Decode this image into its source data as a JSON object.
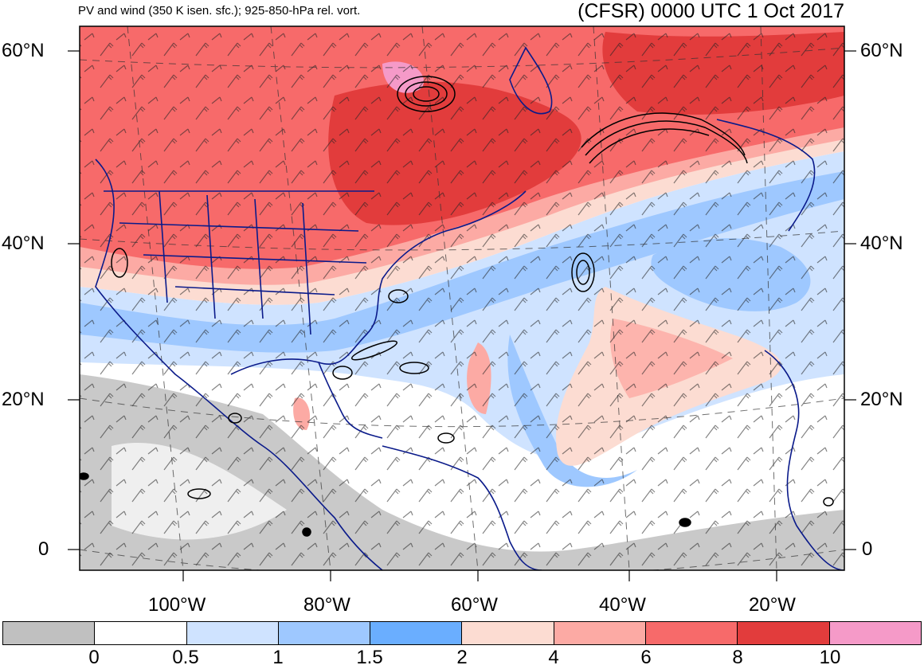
{
  "header": {
    "left_title": "PV and wind (350 K isen. sfc.); 925-850-hPa rel. vort.",
    "right_title": "(CFSR) 0000 UTC 1 Oct 2017"
  },
  "map": {
    "lat_labels": [
      "60°N",
      "40°N",
      "20°N",
      "0"
    ],
    "lon_labels": [
      "100°W",
      "80°W",
      "60°W",
      "40°W",
      "20°W"
    ],
    "colors": {
      "ocean_low": "#ffffff",
      "pv_gray": "#c0c0c0",
      "pv_blue_light": "#cfe3ff",
      "pv_blue_mid": "#9ec8ff",
      "pv_blue_dark": "#6aaeff",
      "pv_red_light": "#fcdcd2",
      "pv_red_mid": "#fcaaa4",
      "pv_red_dark": "#f76a6a",
      "pv_red_deep": "#e23c3c",
      "pv_pink": "#f59ac8",
      "coastline": "#0a1a8a",
      "vorticity": "#000000",
      "gridline": "#333333"
    }
  },
  "colorbar": {
    "labels": [
      "0",
      "0.5",
      "1",
      "1.5",
      "2",
      "4",
      "6",
      "8",
      "10"
    ],
    "colors": [
      "#c0c0c0",
      "#ffffff",
      "#cfe3ff",
      "#9ec8ff",
      "#6aaeff",
      "#fcdcd2",
      "#fcaaa4",
      "#f76a6a",
      "#e23c3c",
      "#f59ac8"
    ]
  }
}
